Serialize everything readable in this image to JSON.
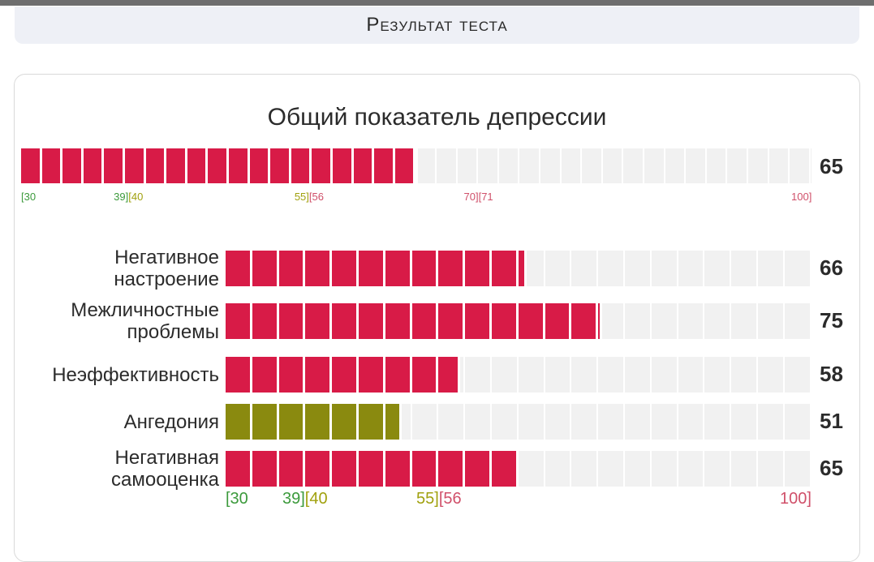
{
  "header": {
    "title": "Результат теста"
  },
  "chart_data": {
    "type": "bar",
    "title": "Общий показатель депрессии",
    "xlim": [
      30,
      100
    ],
    "total": {
      "value": 65,
      "value_label": "65",
      "color": "#d81b47"
    },
    "categories": [
      "Негативное\nнастроение",
      "Межличностные\nпроблемы",
      "Неэффективность",
      "Ангедония",
      "Негативная\nсамооценка"
    ],
    "values": [
      66,
      75,
      58,
      51,
      65
    ],
    "value_labels": [
      "66",
      "75",
      "58",
      "51",
      "65"
    ],
    "bar_colors": [
      "#d81b47",
      "#d81b47",
      "#d81b47",
      "#8a8a0f",
      "#d81b47"
    ],
    "total_scale_ticks": [
      {
        "parts": [
          {
            "text": "[30",
            "color": "#3c9a3c"
          }
        ],
        "pos": 30
      },
      {
        "parts": [
          {
            "text": "39]",
            "color": "#3c9a3c"
          },
          {
            "text": "[40",
            "color": "#a1a10f"
          }
        ],
        "pos": 39.5
      },
      {
        "parts": [
          {
            "text": "55]",
            "color": "#a1a10f"
          },
          {
            "text": "[56",
            "color": "#d0506a"
          }
        ],
        "pos": 55.5
      },
      {
        "parts": [
          {
            "text": "70]",
            "color": "#d0506a"
          },
          {
            "text": "[71",
            "color": "#d0506a"
          }
        ],
        "pos": 70.5
      },
      {
        "parts": [
          {
            "text": "100]",
            "color": "#d0506a"
          }
        ],
        "pos": 100
      }
    ],
    "sub_scale_ticks": [
      {
        "parts": [
          {
            "text": "[30",
            "color": "#3c9a3c"
          }
        ],
        "pos": 30
      },
      {
        "parts": [
          {
            "text": "39]",
            "color": "#3c9a3c"
          },
          {
            "text": "[40",
            "color": "#a1a10f"
          }
        ],
        "pos": 39.5
      },
      {
        "parts": [
          {
            "text": "55]",
            "color": "#a1a10f"
          },
          {
            "text": "[56",
            "color": "#d0506a"
          }
        ],
        "pos": 55.5
      },
      {
        "parts": [
          {
            "text": "100]",
            "color": "#d0506a"
          }
        ],
        "pos": 100
      }
    ]
  }
}
